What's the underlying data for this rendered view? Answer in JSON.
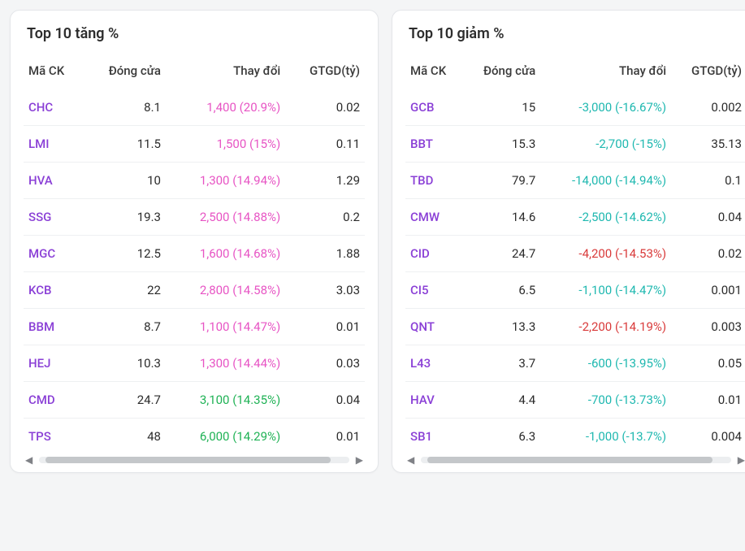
{
  "colors": {
    "ticker_purple": "#8a3fd6",
    "change_magenta": "#e754c4",
    "change_green": "#1fb255",
    "change_teal": "#1fb8b0",
    "change_red": "#d93a3a",
    "text_default": "#2b2b2b"
  },
  "panels": [
    {
      "key": "gainers",
      "title": "Top 10 tăng %",
      "columns": [
        "Mã CK",
        "Đóng cửa",
        "Thay đổi",
        "GTGD(tỷ)"
      ],
      "rows": [
        {
          "ticker": "CHC",
          "close": "8.1",
          "change": "1,400 (20.9%)",
          "change_color": "change_magenta",
          "gtgd": "0.02"
        },
        {
          "ticker": "LMI",
          "close": "11.5",
          "change": "1,500 (15%)",
          "change_color": "change_magenta",
          "gtgd": "0.11"
        },
        {
          "ticker": "HVA",
          "close": "10",
          "change": "1,300 (14.94%)",
          "change_color": "change_magenta",
          "gtgd": "1.29"
        },
        {
          "ticker": "SSG",
          "close": "19.3",
          "change": "2,500 (14.88%)",
          "change_color": "change_magenta",
          "gtgd": "0.2"
        },
        {
          "ticker": "MGC",
          "close": "12.5",
          "change": "1,600 (14.68%)",
          "change_color": "change_magenta",
          "gtgd": "1.88"
        },
        {
          "ticker": "KCB",
          "close": "22",
          "change": "2,800 (14.58%)",
          "change_color": "change_magenta",
          "gtgd": "3.03"
        },
        {
          "ticker": "BBM",
          "close": "8.7",
          "change": "1,100 (14.47%)",
          "change_color": "change_magenta",
          "gtgd": "0.01"
        },
        {
          "ticker": "HEJ",
          "close": "10.3",
          "change": "1,300 (14.44%)",
          "change_color": "change_magenta",
          "gtgd": "0.03"
        },
        {
          "ticker": "CMD",
          "close": "24.7",
          "change": "3,100 (14.35%)",
          "change_color": "change_green",
          "gtgd": "0.04"
        },
        {
          "ticker": "TPS",
          "close": "48",
          "change": "6,000 (14.29%)",
          "change_color": "change_green",
          "gtgd": "0.01"
        }
      ]
    },
    {
      "key": "losers",
      "title": "Top 10 giảm %",
      "columns": [
        "Mã CK",
        "Đóng cửa",
        "Thay đổi",
        "GTGD(tỷ)"
      ],
      "rows": [
        {
          "ticker": "GCB",
          "close": "15",
          "change": "-3,000 (-16.67%)",
          "change_color": "change_teal",
          "gtgd": "0.002"
        },
        {
          "ticker": "BBT",
          "close": "15.3",
          "change": "-2,700 (-15%)",
          "change_color": "change_teal",
          "gtgd": "35.13"
        },
        {
          "ticker": "TBD",
          "close": "79.7",
          "change": "-14,000 (-14.94%)",
          "change_color": "change_teal",
          "gtgd": "0.1"
        },
        {
          "ticker": "CMW",
          "close": "14.6",
          "change": "-2,500 (-14.62%)",
          "change_color": "change_teal",
          "gtgd": "0.04"
        },
        {
          "ticker": "CID",
          "close": "24.7",
          "change": "-4,200 (-14.53%)",
          "change_color": "change_red",
          "gtgd": "0.02"
        },
        {
          "ticker": "CI5",
          "close": "6.5",
          "change": "-1,100 (-14.47%)",
          "change_color": "change_teal",
          "gtgd": "0.001"
        },
        {
          "ticker": "QNT",
          "close": "13.3",
          "change": "-2,200 (-14.19%)",
          "change_color": "change_red",
          "gtgd": "0.003"
        },
        {
          "ticker": "L43",
          "close": "3.7",
          "change": "-600 (-13.95%)",
          "change_color": "change_teal",
          "gtgd": "0.05"
        },
        {
          "ticker": "HAV",
          "close": "4.4",
          "change": "-700 (-13.73%)",
          "change_color": "change_teal",
          "gtgd": "0.01"
        },
        {
          "ticker": "SB1",
          "close": "6.3",
          "change": "-1,000 (-13.7%)",
          "change_color": "change_teal",
          "gtgd": "0.004"
        }
      ]
    }
  ]
}
